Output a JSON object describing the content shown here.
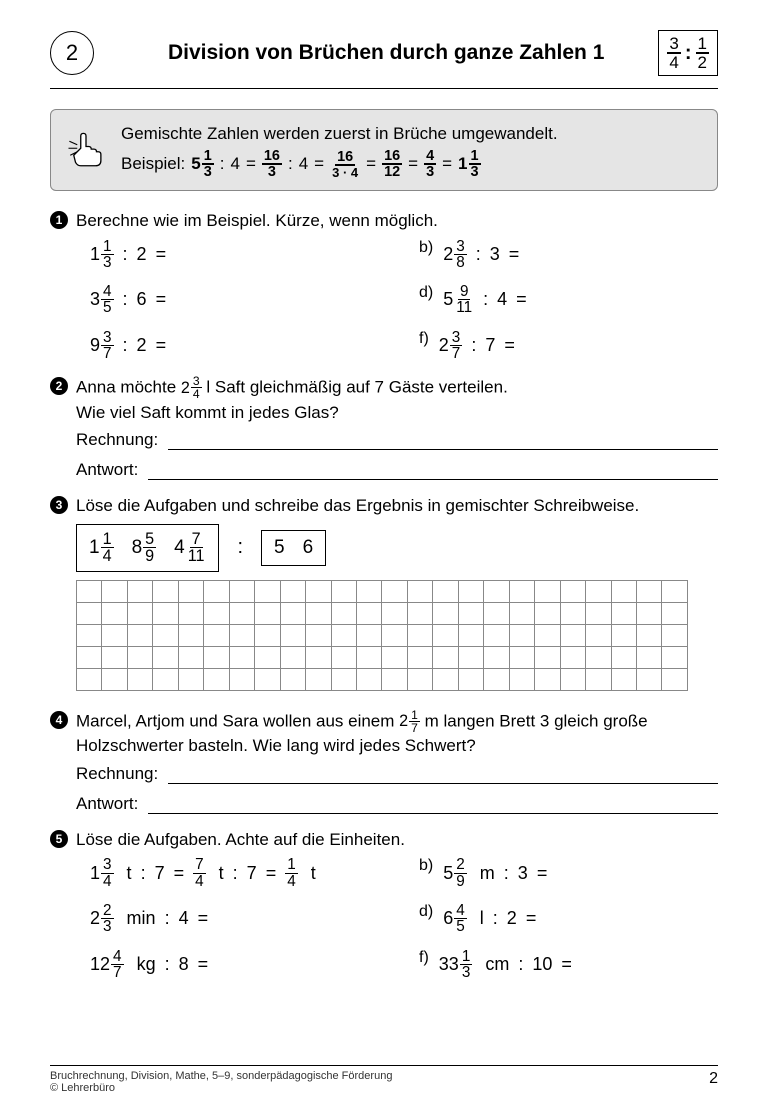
{
  "colors": {
    "bg": "#ffffff",
    "text": "#000000",
    "box_bg": "#e5e5e5",
    "box_border": "#888888",
    "grid_border": "#888888"
  },
  "typography": {
    "family": "Arial",
    "title_size_pt": 16,
    "body_size_pt": 13
  },
  "header": {
    "page_badge": "2",
    "title": "Division von Brüchen durch ganze Zahlen 1",
    "logo_frac": {
      "a_num": "3",
      "a_den": "4",
      "sep": ":",
      "b_num": "1",
      "b_den": "2"
    }
  },
  "example": {
    "line1": "Gemischte Zahlen werden zuerst in Brüche umgewandelt.",
    "label": "Beispiel:",
    "steps": {
      "m1": {
        "whole": "5",
        "num": "1",
        "den": "3"
      },
      "div1": "4",
      "f2": {
        "num": "16",
        "den": "3"
      },
      "div2": "4",
      "f3": {
        "num": "16",
        "den": "3 · 4"
      },
      "f4": {
        "num": "16",
        "den": "12"
      },
      "f5": {
        "num": "4",
        "den": "3"
      },
      "m6": {
        "whole": "1",
        "num": "1",
        "den": "3"
      }
    }
  },
  "tasks": {
    "t1": {
      "prompt": "Berechne wie im Beispiel. Kürze, wenn möglich.",
      "left": [
        {
          "whole": "1",
          "num": "1",
          "den": "3",
          "div": "2"
        },
        {
          "whole": "3",
          "num": "4",
          "den": "5",
          "div": "6"
        },
        {
          "whole": "9",
          "num": "3",
          "den": "7",
          "div": "2"
        }
      ],
      "right": [
        {
          "lbl": "b)",
          "whole": "2",
          "num": "3",
          "den": "8",
          "div": "3"
        },
        {
          "lbl": "d)",
          "whole": "5",
          "num": "9",
          "den": "11",
          "div": "4"
        },
        {
          "lbl": "f)",
          "whole": "2",
          "num": "3",
          "den": "7",
          "div": "7"
        }
      ]
    },
    "t2": {
      "prompt_pre": "Anna möchte ",
      "mixed": {
        "whole": "2",
        "num": "3",
        "den": "4"
      },
      "prompt_post": " l Saft gleichmäßig auf 7 Gäste verteilen.",
      "prompt_line2": "Wie viel Saft kommt in jedes Glas?",
      "rech": "Rechnung:",
      "antw": "Antwort:"
    },
    "t3": {
      "prompt": "Löse die Aufgaben und schreibe das Ergebnis in gemischter Schreibweise.",
      "left_box": [
        {
          "whole": "1",
          "num": "1",
          "den": "4"
        },
        {
          "whole": "8",
          "num": "5",
          "den": "9"
        },
        {
          "whole": "4",
          "num": "7",
          "den": "11"
        }
      ],
      "sep": ":",
      "right_box": [
        "5",
        "6"
      ],
      "grid": {
        "cols": 24,
        "rows": 5
      }
    },
    "t4": {
      "prompt_pre": "Marcel, Artjom und Sara wollen aus einem ",
      "mixed": {
        "whole": "2",
        "num": "1",
        "den": "7"
      },
      "prompt_post": " m langen Brett 3 gleich große",
      "prompt_line2": "Holzschwerter basteln. Wie lang wird jedes Schwert?",
      "rech": "Rechnung:",
      "antw": "Antwort:"
    },
    "t5": {
      "prompt": "Löse die Aufgaben. Achte auf die Einheiten.",
      "left": [
        {
          "pre": {
            "whole": "1",
            "num": "3",
            "den": "4"
          },
          "unit": "t",
          "div": "7",
          "eq1": {
            "num": "7",
            "den": "4"
          },
          "unit1": "t",
          "div1": "7",
          "eq2": {
            "num": "1",
            "den": "4"
          },
          "unit2": "t"
        },
        {
          "pre": {
            "whole": "2",
            "num": "2",
            "den": "3"
          },
          "unit": "min",
          "div": "4"
        },
        {
          "pre": {
            "whole": "12",
            "num": "4",
            "den": "7"
          },
          "unit": "kg",
          "div": "8"
        }
      ],
      "right": [
        {
          "lbl": "b)",
          "pre": {
            "whole": "5",
            "num": "2",
            "den": "9"
          },
          "unit": "m",
          "div": "3"
        },
        {
          "lbl": "d)",
          "pre": {
            "whole": "6",
            "num": "4",
            "den": "5"
          },
          "unit": "l",
          "div": "2"
        },
        {
          "lbl": "f)",
          "pre": {
            "whole": "33",
            "num": "1",
            "den": "3"
          },
          "unit": "cm",
          "div": "10"
        }
      ]
    }
  },
  "footer": {
    "line1": "Bruchrechnung, Division, Mathe, 5–9, sonderpädagogische Förderung",
    "line2": "© Lehrerbüro",
    "page": "2"
  }
}
